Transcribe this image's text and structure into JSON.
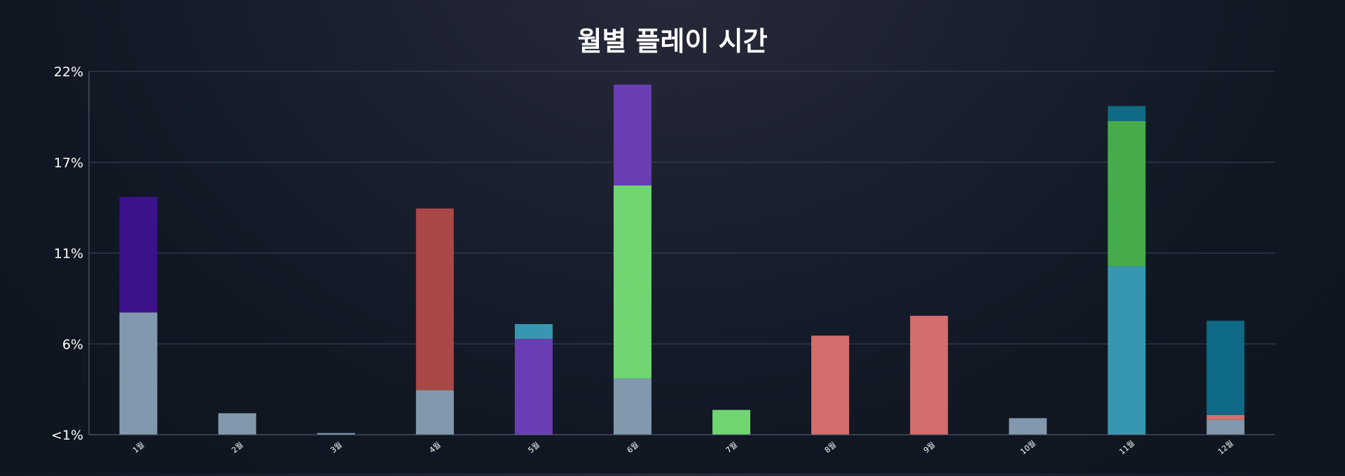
{
  "chart_data": {
    "type": "bar",
    "stacked": true,
    "title": "월별 플레이 시간",
    "categories": [
      "1월",
      "2월",
      "3월",
      "4월",
      "5월",
      "6월",
      "7월",
      "8월",
      "9월",
      "10월",
      "11월",
      "12월"
    ],
    "y_ticks": [
      "<1%",
      "6%",
      "11%",
      "17%",
      "22%"
    ],
    "ylim": [
      0,
      22
    ],
    "grid": true,
    "legend": "none",
    "stacks": [
      [
        {
          "value": 7.4,
          "color": "#8299ad"
        },
        {
          "value": 7.0,
          "color": "#3c128a"
        }
      ],
      [
        {
          "value": 1.3,
          "color": "#8299ad"
        }
      ],
      [
        {
          "value": 0.1,
          "color": "#8299ad"
        }
      ],
      [
        {
          "value": 2.7,
          "color": "#8299ad"
        },
        {
          "value": 11.0,
          "color": "#aa4747"
        }
      ],
      [
        {
          "value": 5.8,
          "color": "#6a3db5"
        },
        {
          "value": 0.9,
          "color": "#3797b0"
        }
      ],
      [
        {
          "value": 3.4,
          "color": "#8299ad"
        },
        {
          "value": 11.7,
          "color": "#70d672"
        },
        {
          "value": 6.1,
          "color": "#6a3db5"
        }
      ],
      [
        {
          "value": 1.5,
          "color": "#70d672"
        }
      ],
      [
        {
          "value": 6.0,
          "color": "#d36e6e"
        }
      ],
      [
        {
          "value": 7.2,
          "color": "#d36e6e"
        }
      ],
      [
        {
          "value": 1.0,
          "color": "#8299ad"
        }
      ],
      [
        {
          "value": 10.2,
          "color": "#3797b0"
        },
        {
          "value": 8.8,
          "color": "#46ab4a"
        },
        {
          "value": 0.9,
          "color": "#0f6a85"
        }
      ],
      [
        {
          "value": 0.9,
          "color": "#8299ad"
        },
        {
          "value": 0.3,
          "color": "#d36e6e"
        },
        {
          "value": 5.7,
          "color": "#0f6a85"
        }
      ]
    ]
  }
}
